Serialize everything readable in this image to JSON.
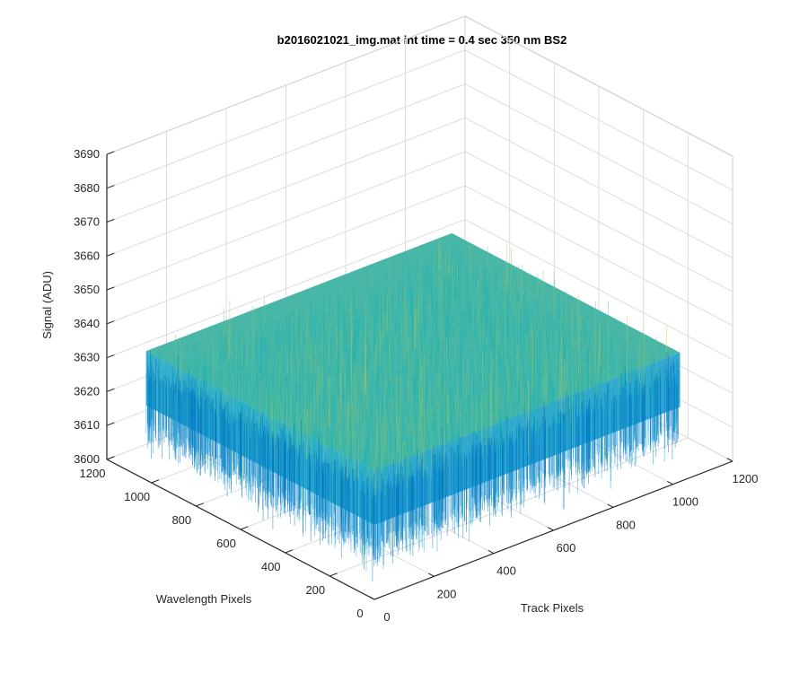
{
  "chart_data": {
    "type": "surface",
    "title": "b2016021021_img.mat int time = 0.4 sec  350 nm BS2",
    "xlabel": "Track Pixels",
    "ylabel": "Wavelength Pixels",
    "zlabel": "Signal (ADU)",
    "xlim": [
      0,
      1200
    ],
    "ylim": [
      0,
      1200
    ],
    "zlim": [
      3600,
      3690
    ],
    "x_ticks": [
      "0",
      "200",
      "400",
      "600",
      "800",
      "1000",
      "1200"
    ],
    "y_ticks": [
      "0",
      "200",
      "400",
      "600",
      "800",
      "1000",
      "1200"
    ],
    "z_ticks": [
      "3600",
      "3610",
      "3620",
      "3630",
      "3640",
      "3650",
      "3660",
      "3670",
      "3680",
      "3690"
    ],
    "data_extent": {
      "x": [
        0,
        1024
      ],
      "y": [
        0,
        1024
      ]
    },
    "signal_mean": 3630,
    "signal_spread": [
      3605,
      3680
    ],
    "grid": true,
    "colormap": "parula",
    "colors": [
      "#0072BD",
      "#1AA6D9",
      "#25B3B0",
      "#7FC27A",
      "#D8C24A"
    ]
  }
}
